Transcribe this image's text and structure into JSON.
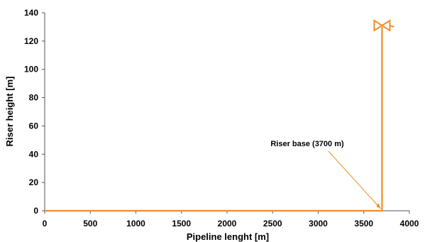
{
  "chart_data": {
    "type": "line",
    "title": "",
    "xlabel": "Pipeline lenght [m]",
    "ylabel": "Riser height [m]",
    "xlim": [
      0,
      4000
    ],
    "ylim": [
      0,
      140
    ],
    "x_ticks": [
      0,
      500,
      1000,
      1500,
      2000,
      2500,
      3000,
      3500,
      4000
    ],
    "y_ticks": [
      0,
      20,
      40,
      60,
      80,
      100,
      120,
      140
    ],
    "grid": false,
    "legend": "none",
    "series": [
      {
        "x": [
          0,
          3700,
          3700,
          3700
        ],
        "y": [
          0,
          0,
          125,
          130
        ],
        "color": "#F28C28"
      }
    ],
    "annotations": [
      {
        "text": "Riser base (3700 m)",
        "x": 3700,
        "y": 0
      }
    ],
    "valve_symbol": {
      "x": 3700,
      "y": 131,
      "icon": "valve-icon",
      "color": "#F28C28"
    }
  }
}
